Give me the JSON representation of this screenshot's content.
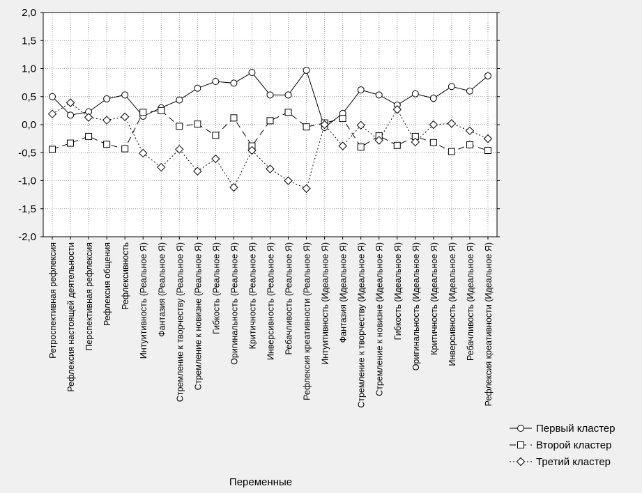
{
  "chart_data": {
    "type": "line",
    "xlabel": "Переменные",
    "ylabel": "",
    "ylim": [
      -2,
      2
    ],
    "yticks": [
      -2,
      -1.5,
      -1,
      -0.5,
      0,
      0.5,
      1,
      1.5,
      2
    ],
    "ytick_labels": [
      "-2,0",
      "-1,5",
      "-1,0",
      "-0,5",
      "0,0",
      "0,5",
      "1,0",
      "1,5",
      "2,0"
    ],
    "grid": true,
    "legend_position": "bottom-right",
    "categories": [
      "Ретроспективная рефлексия",
      "Рефлексия настоящей деятельности",
      "Перспективная рефлексия",
      "Рефлексия общения",
      "Рефлексивность",
      "Интуитивность (Реальное Я)",
      "Фантазия (Реальное Я)",
      "Стремление к творчеству (Реальное Я)",
      "Стремление к новизне (Реальное Я)",
      "Гибкость (Реальное Я)",
      "Оригинальность (Реальное Я)",
      "Критичность (Реальное Я)",
      "Инверсивность (Реальное Я)",
      "Ребачливость (Реальное Я)",
      "Рефлексия креативности (Реальное Я)",
      "Интуитивность (Идеальное Я)",
      "Фантазия (Идеальное Я)",
      "Стремление к творчеству (Идеальное Я)",
      "Стремление к новизне (Идеальное Я)",
      "Гибкость (Идеальное Я)",
      "Оригинальность (Идеальное Я)",
      "Критичность (Идеальное Я)",
      "Инверсивность (Идеальное Я)",
      "Ребачливость (Идеальное Я)",
      "Рефлексия креативности (Идеальное Я)"
    ],
    "series": [
      {
        "name": "Первый кластер",
        "marker": "circle",
        "line": "solid",
        "values": [
          0.5,
          0.17,
          0.23,
          0.46,
          0.53,
          0.15,
          0.3,
          0.44,
          0.65,
          0.77,
          0.74,
          0.93,
          0.53,
          0.53,
          0.97,
          -0.05,
          0.2,
          0.62,
          0.53,
          0.35,
          0.55,
          0.47,
          0.68,
          0.6,
          0.87
        ]
      },
      {
        "name": "Второй кластер",
        "marker": "square",
        "line": "dashed",
        "values": [
          -0.44,
          -0.33,
          -0.21,
          -0.35,
          -0.43,
          0.22,
          0.25,
          -0.03,
          0.01,
          -0.19,
          0.12,
          -0.38,
          0.07,
          0.22,
          -0.04,
          0.03,
          0.11,
          -0.4,
          -0.2,
          -0.37,
          -0.21,
          -0.32,
          -0.48,
          -0.36,
          -0.46
        ]
      },
      {
        "name": "Третий кластер",
        "marker": "diamond",
        "line": "dotted",
        "values": [
          0.19,
          0.39,
          0.13,
          0.08,
          0.14,
          -0.51,
          -0.76,
          -0.44,
          -0.83,
          -0.61,
          -1.12,
          -0.46,
          -0.79,
          -1.0,
          -1.14,
          0.0,
          -0.38,
          -0.01,
          -0.28,
          0.27,
          -0.31,
          0.0,
          0.02,
          -0.11,
          -0.25
        ]
      }
    ]
  }
}
